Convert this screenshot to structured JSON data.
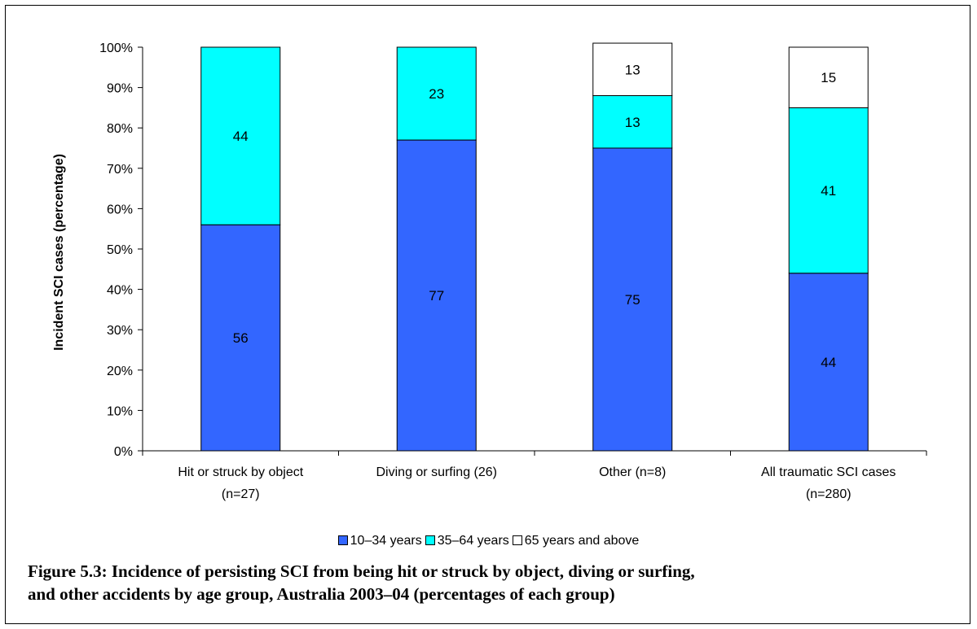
{
  "chart_data": {
    "type": "bar",
    "stacked": true,
    "categories": [
      [
        "Hit or struck by object",
        "(n=27)"
      ],
      [
        "Diving or surfing (26)"
      ],
      [
        "Other (n=8)"
      ],
      [
        "All traumatic SCI cases",
        "(n=280)"
      ]
    ],
    "series": [
      {
        "name": "10–34 years",
        "values": [
          56,
          77,
          75,
          44
        ],
        "color": "#3366ff",
        "legend_label": "10–34 years"
      },
      {
        "name": "35–64 years",
        "values": [
          44,
          23,
          13,
          41
        ],
        "color": "#00ffff",
        "legend_label": "35–64 years"
      },
      {
        "name": "65 years and above",
        "values": [
          0,
          0,
          13,
          15
        ],
        "color": "#ffffff",
        "legend_label": "65 years and above"
      }
    ],
    "data_labels": [
      [
        "56",
        "44",
        ""
      ],
      [
        "77",
        "23",
        ""
      ],
      [
        "75",
        "13",
        "13"
      ],
      [
        "44",
        "41",
        "15"
      ]
    ],
    "ylabel": "Incident SCI cases (percentage)",
    "ylim": [
      0,
      100
    ],
    "yticks": [
      "0%",
      "10%",
      "20%",
      "30%",
      "40%",
      "50%",
      "60%",
      "70%",
      "80%",
      "90%",
      "100%"
    ],
    "grid": false,
    "legend_position": "bottom"
  },
  "caption": {
    "line1": "Figure 5.3: Incidence of persisting SCI from being hit or struck by object, diving or surfing,",
    "line2": "and other accidents by age group, Australia 2003–04 (percentages of each group)"
  }
}
